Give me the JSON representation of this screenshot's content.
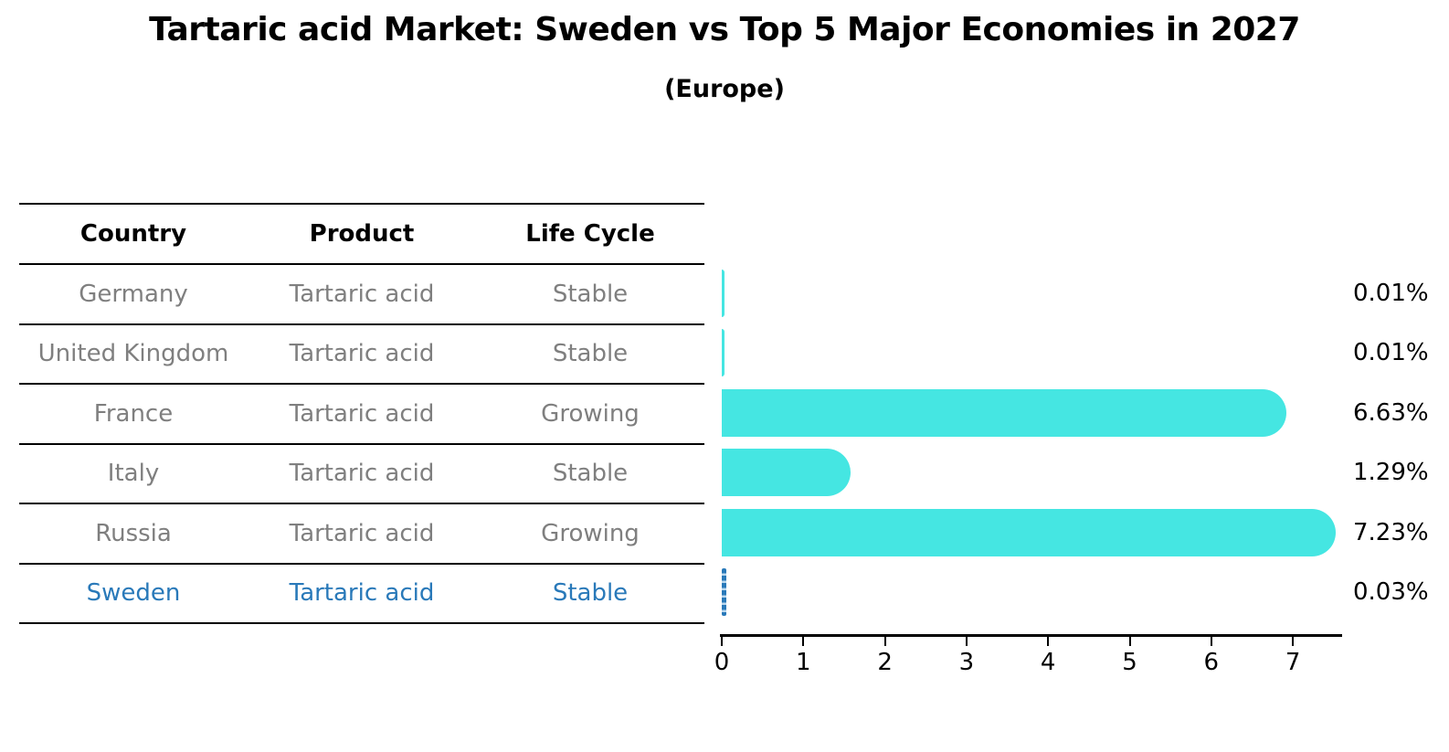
{
  "title": "Tartaric acid Market: Sweden vs Top 5 Major Economies in 2027",
  "subtitle": "(Europe)",
  "table": {
    "headers": [
      "Country",
      "Product",
      "Life Cycle"
    ],
    "rows": [
      {
        "country": "Germany",
        "product": "Tartaric acid",
        "life_cycle": "Stable",
        "highlight": false
      },
      {
        "country": "United Kingdom",
        "product": "Tartaric acid",
        "life_cycle": "Stable",
        "highlight": false
      },
      {
        "country": "France",
        "product": "Tartaric acid",
        "life_cycle": "Growing",
        "highlight": false
      },
      {
        "country": "Italy",
        "product": "Tartaric acid",
        "life_cycle": "Stable",
        "highlight": false
      },
      {
        "country": "Russia",
        "product": "Tartaric acid",
        "life_cycle": "Growing",
        "highlight": false
      },
      {
        "country": "Sweden",
        "product": "Tartaric acid",
        "life_cycle": "Stable",
        "highlight": true
      }
    ]
  },
  "chart_data": {
    "type": "bar",
    "orientation": "horizontal",
    "title": "Tartaric acid Market: Sweden vs Top 5 Major Economies in 2027",
    "subtitle": "(Europe)",
    "categories": [
      "Germany",
      "United Kingdom",
      "France",
      "Italy",
      "Russia",
      "Sweden"
    ],
    "values": [
      0.01,
      0.01,
      6.63,
      1.29,
      7.23,
      0.03
    ],
    "value_labels": [
      "0.01%",
      "0.01%",
      "6.63%",
      "1.29%",
      "7.23%",
      "0.03%"
    ],
    "x_ticks": [
      "0",
      "1",
      "2",
      "3",
      "4",
      "5",
      "6",
      "7"
    ],
    "xlim": [
      0,
      7.63
    ],
    "grid": false,
    "legend": "none",
    "highlight_series": "Sweden",
    "colors": {
      "bar": "#45e6e2",
      "highlight": "#2979b9",
      "muted_text": "#7f7f7f",
      "line": "#000000"
    }
  }
}
